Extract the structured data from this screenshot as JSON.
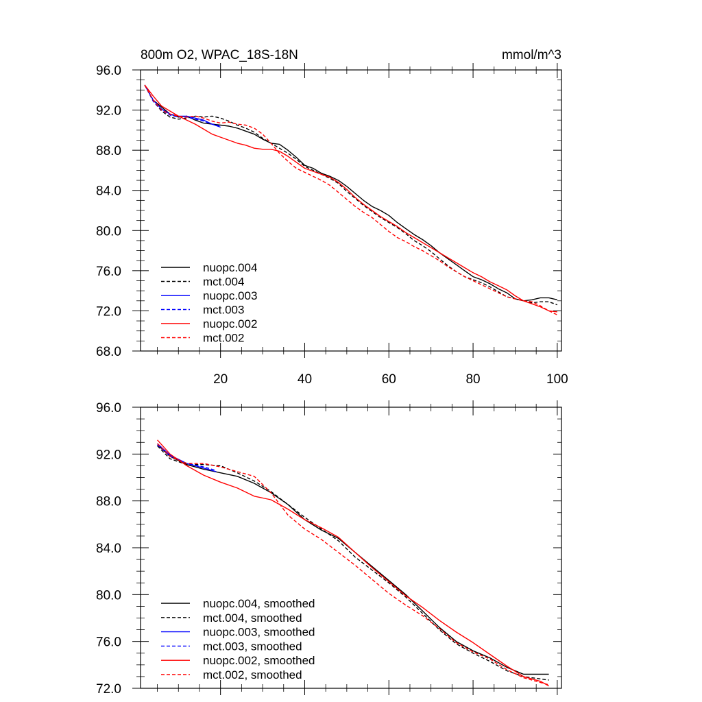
{
  "chart_data": [
    {
      "type": "line",
      "title_left": "800m O2, WPAC_18S-18N",
      "title_right": "mmol/m^3",
      "xlim": [
        1,
        101
      ],
      "ylim": [
        68,
        96
      ],
      "xticks": [
        20,
        40,
        60,
        80,
        100
      ],
      "xtick_labels": [
        "20",
        "40",
        "60",
        "80",
        "100"
      ],
      "yticks": [
        68,
        72,
        76,
        80,
        84,
        88,
        92,
        96
      ],
      "ytick_labels": [
        "68.0",
        "72.0",
        "76.0",
        "80.0",
        "84.0",
        "88.0",
        "92.0",
        "96.0"
      ],
      "legend_position": "bottom-left",
      "series": [
        {
          "name": "nuopc.004",
          "color": "#000000",
          "dash": "solid",
          "x": [
            2,
            4,
            6,
            8,
            10,
            12,
            14,
            16,
            18,
            20,
            22,
            24,
            26,
            28,
            30,
            32,
            34,
            36,
            38,
            40,
            42,
            44,
            46,
            48,
            50,
            52,
            54,
            56,
            58,
            60,
            62,
            64,
            66,
            68,
            70,
            72,
            74,
            76,
            78,
            80,
            82,
            84,
            86,
            88,
            90,
            92,
            94,
            96,
            98,
            100
          ],
          "y": [
            94.5,
            93.0,
            92.3,
            91.6,
            91.3,
            91.4,
            91.0,
            90.7,
            90.6,
            90.5,
            90.4,
            90.2,
            89.9,
            89.6,
            89.1,
            88.7,
            88.6,
            88.0,
            87.3,
            86.5,
            86.2,
            85.7,
            85.4,
            85.0,
            84.4,
            83.7,
            83.0,
            82.4,
            82.0,
            81.5,
            80.8,
            80.2,
            79.6,
            79.1,
            78.5,
            77.8,
            77.2,
            76.6,
            76.0,
            75.4,
            75.1,
            74.7,
            74.2,
            73.8,
            73.2,
            73.0,
            73.1,
            73.3,
            73.3,
            73.1
          ]
        },
        {
          "name": "mct.004",
          "color": "#000000",
          "dash": "dashed",
          "x": [
            2,
            4,
            6,
            8,
            10,
            12,
            14,
            16,
            18,
            20,
            22,
            24,
            26,
            28,
            30,
            32,
            34,
            36,
            38,
            40,
            42,
            44,
            46,
            48,
            50,
            52,
            54,
            56,
            58,
            60,
            62,
            64,
            66,
            68,
            70,
            72,
            74,
            76,
            78,
            80,
            82,
            84,
            86,
            88,
            90,
            92,
            94,
            96,
            98,
            100
          ],
          "y": [
            94.5,
            92.9,
            91.9,
            91.3,
            91.1,
            91.2,
            91.4,
            91.3,
            91.4,
            91.2,
            90.9,
            90.5,
            90.2,
            89.8,
            89.2,
            88.7,
            88.2,
            87.7,
            87.1,
            86.4,
            86.0,
            85.6,
            85.2,
            84.7,
            83.9,
            83.2,
            82.5,
            81.9,
            81.3,
            80.8,
            80.3,
            79.7,
            79.0,
            78.5,
            77.9,
            77.2,
            76.5,
            75.9,
            75.4,
            75.1,
            74.8,
            74.4,
            73.9,
            73.4,
            73.2,
            73.0,
            72.8,
            72.9,
            72.9,
            72.6
          ]
        },
        {
          "name": "nuopc.003",
          "color": "#0000ff",
          "dash": "solid",
          "x": [
            2,
            4,
            6,
            8,
            10,
            12,
            14,
            16,
            18,
            20
          ],
          "y": [
            94.5,
            93.0,
            92.1,
            91.6,
            91.4,
            91.4,
            91.2,
            91.0,
            90.6,
            90.3
          ]
        },
        {
          "name": "mct.003",
          "color": "#0000ff",
          "dash": "dashed",
          "x": [
            2,
            4,
            6,
            8,
            10,
            12,
            14,
            16,
            18,
            20
          ],
          "y": [
            94.5,
            92.9,
            92.0,
            91.5,
            91.3,
            91.3,
            91.1,
            90.9,
            90.6,
            90.4
          ]
        },
        {
          "name": "nuopc.002",
          "color": "#ff0000",
          "dash": "solid",
          "x": [
            2,
            4,
            6,
            8,
            10,
            12,
            14,
            16,
            18,
            20,
            22,
            24,
            26,
            28,
            30,
            32,
            34,
            36,
            38,
            40,
            42,
            44,
            46,
            48,
            50,
            52,
            54,
            56,
            58,
            60,
            62,
            64,
            66,
            68,
            70,
            72,
            74,
            76,
            78,
            80,
            82,
            84,
            86,
            88,
            90,
            92,
            94,
            96,
            98,
            100
          ],
          "y": [
            94.5,
            93.4,
            92.4,
            91.9,
            91.4,
            91.0,
            90.6,
            90.1,
            89.6,
            89.3,
            89.0,
            88.7,
            88.5,
            88.2,
            88.1,
            88.1,
            87.9,
            87.4,
            86.8,
            86.2,
            85.9,
            85.6,
            85.3,
            84.8,
            84.1,
            83.3,
            82.6,
            82.0,
            81.4,
            80.9,
            80.4,
            79.8,
            79.3,
            78.8,
            78.3,
            77.8,
            77.3,
            76.8,
            76.3,
            75.8,
            75.4,
            74.9,
            74.5,
            74.1,
            73.5,
            73.0,
            72.7,
            72.4,
            72.0,
            71.9
          ]
        },
        {
          "name": "mct.002",
          "color": "#ff0000",
          "dash": "dashed",
          "x": [
            2,
            4,
            6,
            8,
            10,
            12,
            14,
            16,
            18,
            20,
            22,
            24,
            26,
            28,
            30,
            32,
            34,
            36,
            38,
            40,
            42,
            44,
            46,
            48,
            50,
            52,
            54,
            56,
            58,
            60,
            62,
            64,
            66,
            68,
            70,
            72,
            74,
            76,
            78,
            80,
            82,
            84,
            86,
            88,
            90,
            92,
            94,
            96,
            98,
            100
          ],
          "y": [
            94.5,
            93.0,
            92.0,
            91.6,
            91.4,
            91.3,
            91.4,
            91.2,
            90.9,
            90.7,
            90.8,
            90.6,
            90.5,
            90.2,
            89.6,
            88.7,
            87.7,
            86.9,
            86.2,
            85.8,
            85.4,
            85.0,
            84.5,
            83.8,
            83.1,
            82.4,
            81.8,
            81.3,
            80.6,
            79.9,
            79.3,
            78.9,
            78.4,
            78.0,
            77.5,
            77.0,
            76.4,
            75.9,
            75.4,
            75.0,
            74.6,
            74.2,
            73.8,
            73.4,
            73.2,
            73.0,
            72.9,
            72.5,
            72.0,
            71.6
          ]
        }
      ],
      "legend": [
        "nuopc.004",
        "mct.004",
        "nuopc.003",
        "mct.003",
        "nuopc.002",
        "mct.002"
      ]
    },
    {
      "type": "line",
      "xlim": [
        1,
        101
      ],
      "ylim": [
        72,
        96
      ],
      "xticks": [
        20,
        40,
        60,
        80,
        100
      ],
      "yticks": [
        72,
        76,
        80,
        84,
        88,
        92,
        96
      ],
      "ytick_labels": [
        "72.0",
        "76.0",
        "80.0",
        "84.0",
        "88.0",
        "92.0",
        "96.0"
      ],
      "legend_position": "bottom-left",
      "series": [
        {
          "name": "nuopc.004, smoothed",
          "color": "#000000",
          "dash": "solid",
          "x": [
            5,
            8,
            12,
            16,
            20,
            24,
            28,
            32,
            36,
            40,
            44,
            48,
            52,
            56,
            60,
            64,
            68,
            72,
            76,
            80,
            84,
            88,
            92,
            96,
            98
          ],
          "y": [
            92.8,
            91.8,
            91.1,
            90.7,
            90.4,
            90.1,
            89.5,
            88.7,
            87.7,
            86.4,
            85.5,
            84.8,
            83.6,
            82.4,
            81.2,
            80.0,
            78.6,
            77.2,
            76.0,
            75.2,
            74.6,
            73.8,
            73.2,
            73.2,
            73.2
          ]
        },
        {
          "name": "mct.004, smoothed",
          "color": "#000000",
          "dash": "dashed",
          "x": [
            5,
            8,
            12,
            16,
            20,
            24,
            28,
            32,
            36,
            40,
            44,
            48,
            52,
            56,
            60,
            64,
            68,
            72,
            76,
            80,
            84,
            88,
            92,
            96,
            98
          ],
          "y": [
            92.7,
            91.6,
            91.1,
            91.1,
            91.0,
            90.4,
            89.7,
            88.8,
            87.7,
            86.6,
            85.6,
            84.6,
            83.2,
            82.1,
            81.0,
            79.8,
            78.4,
            77.0,
            75.8,
            75.0,
            74.3,
            73.5,
            73.0,
            72.8,
            72.7
          ]
        },
        {
          "name": "nuopc.003, smoothed",
          "color": "#0000ff",
          "dash": "solid",
          "x": [
            5,
            8,
            12,
            16,
            19
          ],
          "y": [
            92.9,
            91.9,
            91.2,
            90.8,
            90.5
          ]
        },
        {
          "name": "mct.003, smoothed",
          "color": "#0000ff",
          "dash": "dashed",
          "x": [
            5,
            8,
            12,
            16,
            19
          ],
          "y": [
            92.8,
            91.8,
            91.2,
            90.9,
            90.6
          ]
        },
        {
          "name": "nuopc.002, smoothed",
          "color": "#ff0000",
          "dash": "solid",
          "x": [
            5,
            8,
            12,
            16,
            20,
            24,
            28,
            32,
            36,
            40,
            44,
            48,
            52,
            56,
            60,
            64,
            68,
            72,
            76,
            80,
            84,
            88,
            92,
            96,
            98
          ],
          "y": [
            93.2,
            92.0,
            91.0,
            90.2,
            89.6,
            89.1,
            88.4,
            88.1,
            87.3,
            86.4,
            85.7,
            84.9,
            83.6,
            82.3,
            81.1,
            79.9,
            78.9,
            77.8,
            76.8,
            75.9,
            74.9,
            73.9,
            73.0,
            72.6,
            72.2
          ]
        },
        {
          "name": "mct.002, smoothed",
          "color": "#ff0000",
          "dash": "dashed",
          "x": [
            5,
            8,
            12,
            16,
            20,
            24,
            28,
            32,
            36,
            40,
            44,
            48,
            52,
            56,
            60,
            64,
            68,
            72,
            76,
            80,
            84,
            88,
            92,
            96,
            98
          ],
          "y": [
            92.9,
            91.8,
            91.2,
            91.2,
            90.9,
            90.5,
            90.1,
            88.7,
            86.8,
            85.6,
            84.7,
            83.6,
            82.5,
            81.3,
            80.1,
            79.1,
            78.2,
            77.1,
            75.9,
            75.1,
            74.5,
            73.6,
            72.9,
            72.5,
            72.3
          ]
        }
      ],
      "legend": [
        "nuopc.004, smoothed",
        "mct.004, smoothed",
        "nuopc.003, smoothed",
        "mct.003, smoothed",
        "nuopc.002, smoothed",
        "mct.002, smoothed"
      ]
    }
  ]
}
